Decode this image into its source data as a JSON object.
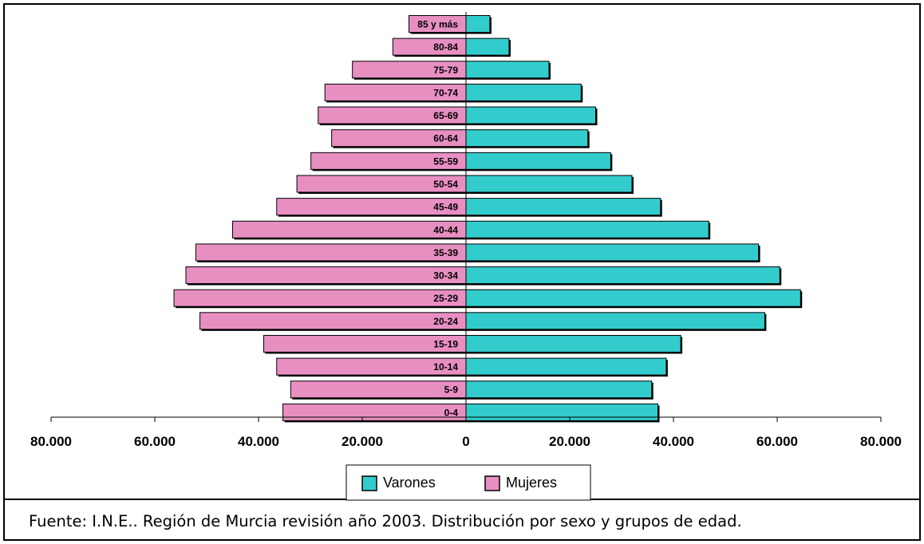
{
  "caption": "Fuente: I.N.E.. Región de Murcia revisión año 2003. Distribución por sexo y grupos de edad.",
  "chart_data": {
    "type": "bar",
    "orientation": "horizontal-population-pyramid",
    "categories": [
      "0-4",
      "5-9",
      "10-14",
      "15-19",
      "20-24",
      "25-29",
      "30-34",
      "35-39",
      "40-44",
      "45-49",
      "50-54",
      "55-59",
      "60-64",
      "65-69",
      "70-74",
      "75-79",
      "80-84",
      "85 y más"
    ],
    "series": [
      {
        "name": "Varones",
        "color": "#33cccc",
        "side": "right",
        "values": [
          37000,
          35800,
          38600,
          41400,
          57600,
          64500,
          60500,
          56400,
          46800,
          37500,
          32000,
          27900,
          23500,
          25000,
          22200,
          16000,
          8300,
          4600
        ]
      },
      {
        "name": "Mujeres",
        "color": "#e88fc2",
        "side": "left",
        "values": [
          35300,
          33800,
          36500,
          39000,
          51300,
          56300,
          54000,
          52100,
          45000,
          36500,
          32600,
          29900,
          25900,
          28500,
          27200,
          21900,
          14100,
          11000
        ]
      }
    ],
    "xlim": [
      -80000,
      80000
    ],
    "tick_values": [
      -80000,
      -60000,
      -40000,
      -20000,
      0,
      20000,
      40000,
      60000,
      80000
    ],
    "tick_labels": [
      "80.000",
      "60.000",
      "40.000",
      "20.000",
      "0",
      "20.000",
      "40.000",
      "60.000",
      "80.000"
    ],
    "legend_position": "bottom",
    "legend": [
      "Varones",
      "Mujeres"
    ]
  }
}
